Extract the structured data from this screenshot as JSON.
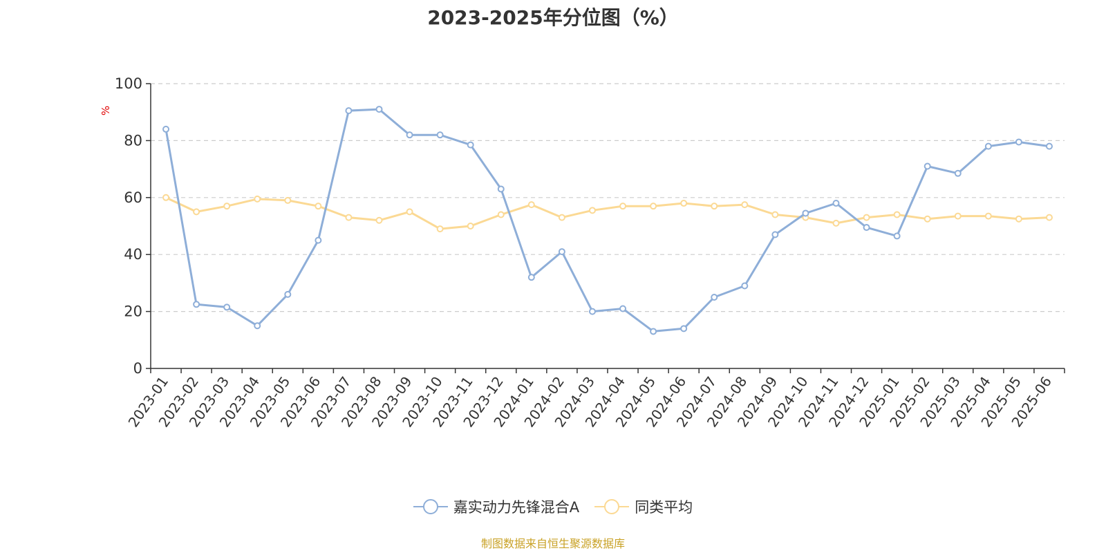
{
  "chart_data": {
    "type": "line",
    "title": "2023-2025年分位图（%）",
    "ylabel": "%",
    "xlabel": "",
    "ylim": [
      0,
      100
    ],
    "yticks": [
      0,
      20,
      40,
      60,
      80,
      100
    ],
    "grid": true,
    "legend_position": "bottom",
    "categories": [
      "2023-01",
      "2023-02",
      "2023-03",
      "2023-04",
      "2023-05",
      "2023-06",
      "2023-07",
      "2023-08",
      "2023-09",
      "2023-10",
      "2023-11",
      "2023-12",
      "2024-01",
      "2024-02",
      "2024-03",
      "2024-04",
      "2024-05",
      "2024-06",
      "2024-07",
      "2024-08",
      "2024-09",
      "2024-10",
      "2024-11",
      "2024-12",
      "2025-01",
      "2025-02",
      "2025-03",
      "2025-04",
      "2025-05",
      "2025-06"
    ],
    "series": [
      {
        "name": "嘉实动力先锋混合A",
        "color": "#8eaed8",
        "values": [
          84,
          22.5,
          21.5,
          15,
          26,
          45,
          90.5,
          91,
          82,
          82,
          78.5,
          63,
          32,
          41,
          20,
          21,
          13,
          14,
          25,
          29,
          47,
          54.5,
          58,
          49.5,
          46.5,
          71,
          68.5,
          78,
          79.5,
          78
        ]
      },
      {
        "name": "同类平均",
        "color": "#fbd994",
        "values": [
          60,
          55,
          57,
          59.5,
          59,
          57,
          53,
          52,
          55,
          49,
          50,
          54,
          57.5,
          53,
          55.5,
          57,
          57,
          58,
          57,
          57.5,
          54,
          53,
          51,
          53,
          54,
          52.5,
          53.5,
          53.5,
          52.5,
          53
        ]
      }
    ]
  },
  "source_note": "制图数据来自恒生聚源数据库"
}
